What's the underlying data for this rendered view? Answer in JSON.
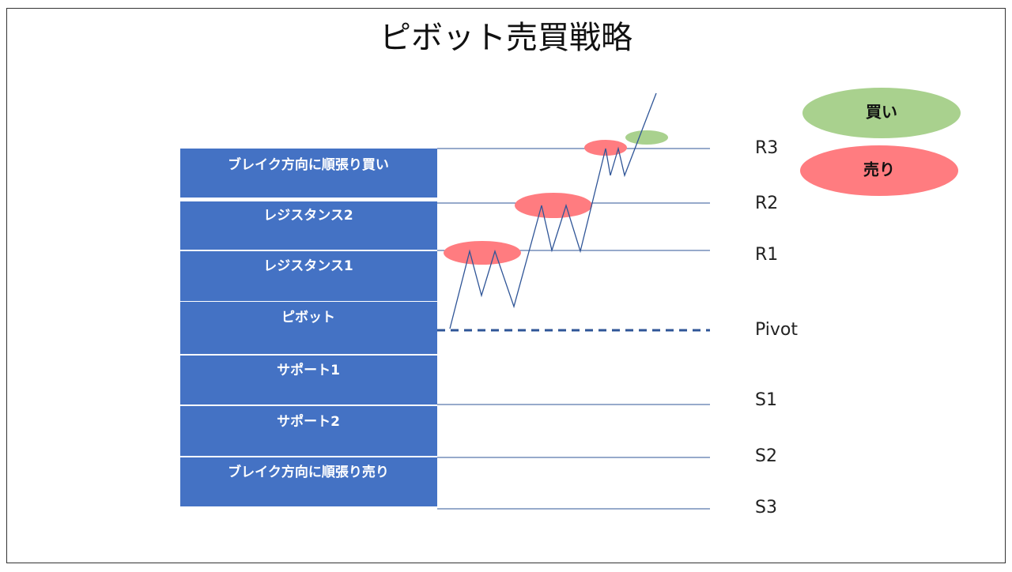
{
  "title": "ピボット売買戦略",
  "zones": [
    "ブレイク方向に順張り買い",
    "レジスタンス2",
    "レジスタンス1",
    "ピボット",
    "サポート1",
    "サポート2",
    "ブレイク方向に順張り売り"
  ],
  "levels": [
    "R3",
    "R2",
    "R1",
    "Pivot",
    "S1",
    "S2",
    "S3"
  ],
  "legend": {
    "buy": "買い",
    "sell": "売り"
  }
}
